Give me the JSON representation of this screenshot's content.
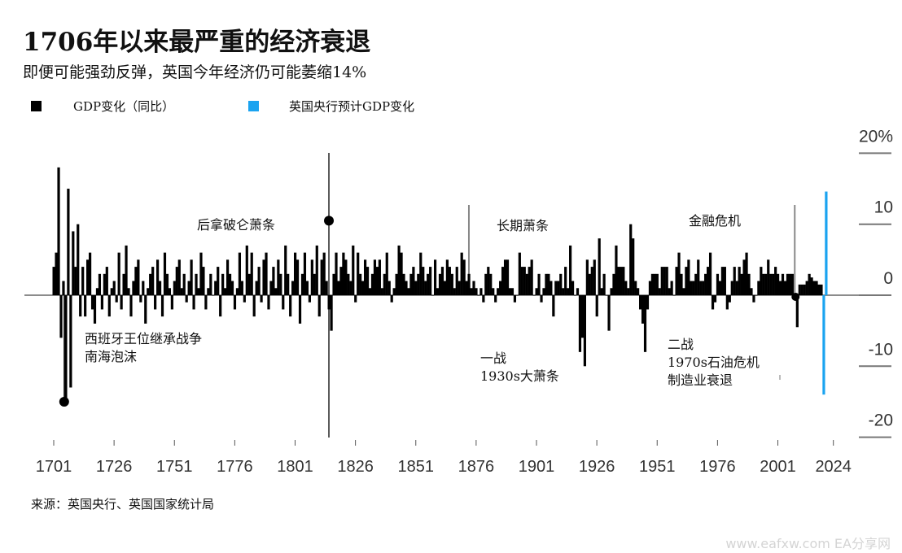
{
  "title": "1706年以来最严重的经济衰退",
  "subtitle": "即便可能强劲反弹，英国今年经济仍可能萎缩14%",
  "legend": [
    {
      "label": "GDP变化（同比）",
      "color": "#000000"
    },
    {
      "label": "英国央行预计GDP变化",
      "color": "#1aa3f0"
    }
  ],
  "source": "来源：英国央行、英国国家统计局",
  "watermark": "www.eafxw.com  EA分享网",
  "chart_data": {
    "type": "bar",
    "title": "1706年以来最严重的经济衰退",
    "ylabel": "GDP变化（同比） %",
    "ylim": [
      -20,
      20
    ],
    "yticks": [
      "20%",
      "10",
      "0",
      "-10",
      "-20"
    ],
    "ytick_values": [
      20,
      10,
      0,
      -10,
      -20
    ],
    "xticks": [
      "1701",
      "1726",
      "1751",
      "1776",
      "1801",
      "1826",
      "1851",
      "1876",
      "1901",
      "1926",
      "1951",
      "1976",
      "2001",
      "2024"
    ],
    "xlim": [
      1701,
      2024
    ],
    "series": [
      {
        "name": "GDP变化（同比）",
        "start_year": 1701,
        "values": [
          4,
          6,
          18,
          -6,
          2,
          -15,
          15,
          -13,
          9,
          4,
          10,
          -3,
          4,
          -3,
          5,
          6,
          -2,
          -4,
          1,
          3,
          -2,
          3,
          4,
          -3,
          1,
          2,
          -1,
          6,
          -2,
          3,
          7,
          1,
          -3,
          2,
          4,
          5,
          -1,
          2,
          -4,
          1,
          3,
          4,
          -2,
          5,
          2,
          -3,
          6,
          3,
          1,
          -2,
          2,
          4,
          5,
          1,
          3,
          -1,
          2,
          5,
          -2,
          3,
          1,
          6,
          4,
          -2,
          1,
          3,
          0,
          2,
          4,
          -3,
          3,
          1,
          5,
          3,
          2,
          -2,
          1,
          6,
          2,
          -1,
          7,
          3,
          6,
          -3,
          2,
          4,
          -1,
          5,
          6,
          -2,
          2,
          4,
          1,
          5,
          3,
          -2,
          7,
          3,
          -3,
          2,
          6,
          5,
          -4,
          3,
          6,
          2,
          -1,
          5,
          3,
          7,
          -3,
          5,
          6,
          2,
          -2,
          -5,
          3,
          6,
          2,
          4,
          6,
          5,
          3,
          2,
          7,
          -1,
          6,
          3,
          2,
          5,
          4,
          1,
          3,
          5,
          4,
          5,
          1,
          3,
          6,
          2,
          -1,
          1,
          3,
          7,
          6,
          3,
          2,
          1,
          3,
          4,
          2,
          3,
          6,
          4,
          2,
          3,
          4,
          0,
          5,
          1,
          3,
          4,
          2,
          5,
          4,
          3,
          1,
          4,
          2,
          6,
          5,
          2,
          3,
          1,
          2,
          1,
          0,
          1,
          -1,
          3,
          4,
          3,
          1,
          -1,
          1,
          2,
          4,
          5,
          5,
          1,
          1,
          -1,
          0,
          6,
          4,
          4,
          3,
          4,
          5,
          0,
          1,
          3,
          -1,
          1,
          3,
          3,
          2,
          -3,
          2,
          2,
          3,
          1,
          4,
          1,
          7,
          2,
          0,
          1,
          -8,
          -6,
          -10,
          5,
          3,
          4,
          5,
          -3,
          8,
          1,
          3,
          0,
          -5,
          1,
          3,
          7,
          4,
          4,
          4,
          2,
          1,
          10,
          8,
          2,
          1,
          -2,
          -4,
          -8,
          -2,
          2,
          3,
          3,
          3,
          1,
          4,
          4,
          4,
          1,
          2,
          0,
          4,
          6,
          3,
          1,
          4,
          5,
          2,
          2,
          3,
          5,
          2,
          2,
          3,
          4,
          6,
          -2,
          -1,
          3,
          2,
          4,
          4,
          -2,
          -1,
          2,
          4,
          2,
          4,
          3,
          5,
          6,
          3,
          1,
          -1,
          0,
          2,
          4,
          3,
          3,
          5,
          3,
          3,
          4,
          3,
          2,
          3,
          2,
          3,
          3,
          3,
          -0.5,
          -4.5,
          1.5,
          1.5,
          1.5,
          2,
          3,
          2.5,
          2,
          2,
          1.5,
          1.5
        ]
      },
      {
        "name": "英国央行预计GDP变化",
        "start_year": 2020,
        "values": [
          -14,
          14.6
        ]
      }
    ],
    "annotations": [
      {
        "text": [
          "西班牙王位继承战争",
          "南海泡沫"
        ],
        "year": 1706,
        "marker_value": -15
      },
      {
        "text": [
          "后拿破仑萧条"
        ],
        "year": 1815,
        "marker_value": 10.5
      },
      {
        "text": [
          "长期萧条"
        ],
        "year": 1873
      },
      {
        "text": [
          "一战",
          "1930s大萧条"
        ],
        "year": 1921
      },
      {
        "text": [
          "金融危机"
        ],
        "year": 2008
      },
      {
        "text": [
          "二战",
          "1970s石油危机",
          "制造业衰退"
        ],
        "year": 1980
      }
    ]
  }
}
